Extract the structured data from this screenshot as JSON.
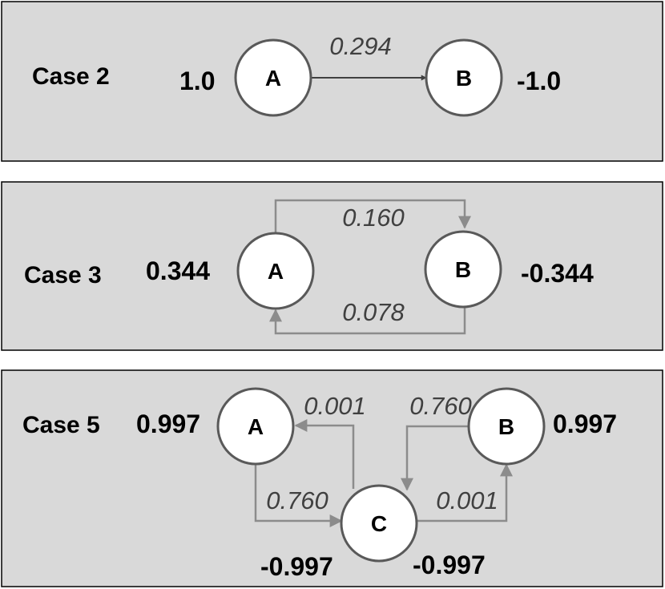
{
  "case2": {
    "title": "Case 2",
    "node_a": "A",
    "node_b": "B",
    "value_a": "1.0",
    "value_b": "-1.0",
    "edge_ab": "0.294"
  },
  "case3": {
    "title": "Case 3",
    "node_a": "A",
    "node_b": "B",
    "value_a": "0.344",
    "value_b": "-0.344",
    "edge_ab": "0.160",
    "edge_ba": "0.078"
  },
  "case5": {
    "title": "Case 5",
    "node_a": "A",
    "node_b": "B",
    "node_c": "C",
    "value_a": "0.997",
    "value_b": "0.997",
    "value_c_left": "-0.997",
    "value_c_right": "-0.997",
    "edge_ca": "0.001",
    "edge_bc": "0.760",
    "edge_ac": "0.760",
    "edge_cb": "0.001"
  },
  "colors": {
    "panel": "#d9d9d9",
    "node_stroke": "#595959",
    "arrow_dark": "#404040",
    "arrow_gray": "#8c8c8c"
  }
}
